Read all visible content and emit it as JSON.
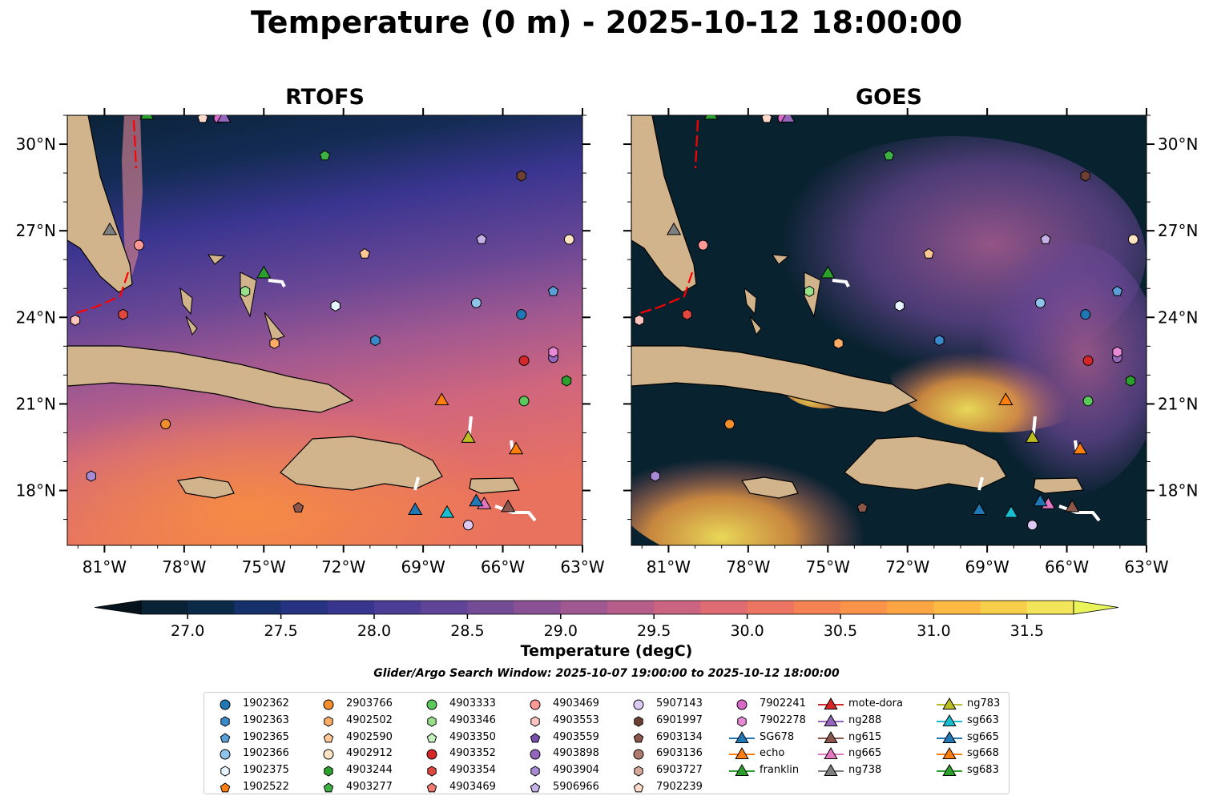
{
  "title": "Temperature (0 m) - 2025-10-12 18:00:00",
  "panels": [
    {
      "title": "RTOFS"
    },
    {
      "title": "GOES"
    }
  ],
  "chart_data": {
    "type": "heatmap",
    "x_ticks": [
      "81°W",
      "78°W",
      "75°W",
      "72°W",
      "69°W",
      "66°W",
      "63°W"
    ],
    "x_tick_values": [
      -81,
      -78,
      -75,
      -72,
      -69,
      -66,
      -63
    ],
    "y_ticks": [
      "30°N",
      "27°N",
      "24°N",
      "21°N",
      "18°N"
    ],
    "y_tick_values": [
      30,
      27,
      24,
      21,
      18
    ],
    "xlim": [
      -82.4,
      -63
    ],
    "ylim": [
      16.1,
      31
    ],
    "colorbar": {
      "label": "Temperature (degC)",
      "ticks": [
        "27.0",
        "27.5",
        "28.0",
        "28.5",
        "29.0",
        "29.5",
        "30.0",
        "30.5",
        "31.0",
        "31.5"
      ],
      "range": [
        26.75,
        31.75
      ],
      "extend": "both",
      "colors": [
        "#0a2236",
        "#0b2a48",
        "#15306a",
        "#263382",
        "#38358f",
        "#4b3c95",
        "#5f4497",
        "#744c96",
        "#8a5294",
        "#a05891",
        "#b65d8a",
        "#cb6480",
        "#de6c72",
        "#ec7462",
        "#f58253",
        "#fa934a",
        "#fca543",
        "#fcb944",
        "#f8cf4b",
        "#f2e55a"
      ]
    },
    "search_window": "Glider/Argo Search Window: 2025-10-07 19:00:00 to 2025-10-12 18:00:00",
    "markers": [
      {
        "name": "1902362",
        "shape": "circle",
        "color": "#1f77b4",
        "lon": -65.3,
        "lat": 24.1
      },
      {
        "name": "1902363",
        "shape": "hexagon",
        "color": "#3a89c9",
        "lon": -70.8,
        "lat": 23.2
      },
      {
        "name": "1902365",
        "shape": "pentagon",
        "color": "#5aa0d6",
        "lon": -64.1,
        "lat": 24.9
      },
      {
        "name": "1902366",
        "shape": "circle",
        "color": "#8fc3ea",
        "lon": -67.0,
        "lat": 24.5
      },
      {
        "name": "1902375",
        "shape": "hexagon",
        "color": "#e8f4fd",
        "lon": -72.3,
        "lat": 24.4
      },
      {
        "name": "1902522",
        "shape": "pentagon",
        "color": "#ff7f0e",
        "lon": null,
        "lat": null
      },
      {
        "name": "2903766",
        "shape": "circle",
        "color": "#f28e2b",
        "lon": -78.7,
        "lat": 20.3
      },
      {
        "name": "4902502",
        "shape": "hexagon",
        "color": "#ffad66",
        "lon": -74.6,
        "lat": 23.1
      },
      {
        "name": "4902590",
        "shape": "pentagon",
        "color": "#ffc896",
        "lon": -71.2,
        "lat": 26.2
      },
      {
        "name": "4902912",
        "shape": "circle",
        "color": "#ffe4c4",
        "lon": -63.5,
        "lat": 26.7
      },
      {
        "name": "4903244",
        "shape": "hexagon",
        "color": "#2ca02c",
        "lon": -63.6,
        "lat": 21.8
      },
      {
        "name": "4903277",
        "shape": "pentagon",
        "color": "#3cb043",
        "lon": -72.7,
        "lat": 29.6
      },
      {
        "name": "4903333",
        "shape": "circle",
        "color": "#5ac85a",
        "lon": -65.2,
        "lat": 21.1
      },
      {
        "name": "4903346",
        "shape": "hexagon",
        "color": "#98df8a",
        "lon": -75.7,
        "lat": 24.9
      },
      {
        "name": "4903350",
        "shape": "pentagon",
        "color": "#c7f0c0",
        "lon": null,
        "lat": null
      },
      {
        "name": "4903352",
        "shape": "circle",
        "color": "#d62728",
        "lon": -65.2,
        "lat": 22.5
      },
      {
        "name": "4903354",
        "shape": "hexagon",
        "color": "#e0483f",
        "lon": -80.3,
        "lat": 24.1
      },
      {
        "name": "4903469",
        "shape": "pentagon",
        "color": "#f07b72",
        "lon": null,
        "lat": null
      },
      {
        "name": "4903469",
        "shape": "circle",
        "color": "#ff9896",
        "lon": -79.7,
        "lat": 26.5
      },
      {
        "name": "4903553",
        "shape": "hexagon",
        "color": "#ffc4c0",
        "lon": -82.1,
        "lat": 23.9
      },
      {
        "name": "4903559",
        "shape": "pentagon",
        "color": "#7a4fb0",
        "lon": null,
        "lat": null
      },
      {
        "name": "4903898",
        "shape": "circle",
        "color": "#9467bd",
        "lon": -64.1,
        "lat": 22.6
      },
      {
        "name": "4903904",
        "shape": "hexagon",
        "color": "#a88ad4",
        "lon": -81.5,
        "lat": 18.5
      },
      {
        "name": "5906966",
        "shape": "pentagon",
        "color": "#c5b0e8",
        "lon": -66.8,
        "lat": 26.7
      },
      {
        "name": "5907143",
        "shape": "circle",
        "color": "#dccaf2",
        "lon": -67.3,
        "lat": 16.8
      },
      {
        "name": "6901997",
        "shape": "hexagon",
        "color": "#6d4033",
        "lon": -65.3,
        "lat": 28.9
      },
      {
        "name": "6903134",
        "shape": "pentagon",
        "color": "#8c564b",
        "lon": -73.7,
        "lat": 17.4
      },
      {
        "name": "6903136",
        "shape": "circle",
        "color": "#b07a6e",
        "lon": null,
        "lat": null
      },
      {
        "name": "6903727",
        "shape": "hexagon",
        "color": "#d6a79b",
        "lon": null,
        "lat": null
      },
      {
        "name": "7902239",
        "shape": "pentagon",
        "color": "#ffd9c9",
        "lon": -77.3,
        "lat": 30.9
      },
      {
        "name": "7902241",
        "shape": "circle",
        "color": "#d868c8",
        "lon": -76.7,
        "lat": 30.9
      },
      {
        "name": "7902278",
        "shape": "hexagon",
        "color": "#e88ad6",
        "lon": -64.1,
        "lat": 22.8
      },
      {
        "name": "SG678",
        "shape": "triangle",
        "color": "#1f77b4",
        "lon": -69.3,
        "lat": 17.3
      },
      {
        "name": "echo",
        "shape": "triangle",
        "color": "#ff7f0e",
        "lon": -68.3,
        "lat": 21.1
      },
      {
        "name": "franklin",
        "shape": "triangle",
        "color": "#2ca02c",
        "lon": -75.0,
        "lat": 25.5
      },
      {
        "name": "mote-dora",
        "shape": "triangle",
        "color": "#d62728",
        "lon": null,
        "lat": null
      },
      {
        "name": "ng288",
        "shape": "triangle",
        "color": "#9467bd",
        "lon": -76.5,
        "lat": 30.9
      },
      {
        "name": "ng615",
        "shape": "triangle",
        "color": "#8c564b",
        "lon": -65.8,
        "lat": 17.4
      },
      {
        "name": "ng665",
        "shape": "triangle",
        "color": "#e377c2",
        "lon": -66.7,
        "lat": 17.5
      },
      {
        "name": "ng738",
        "shape": "triangle",
        "color": "#7f7f7f",
        "lon": -80.8,
        "lat": 27.0
      },
      {
        "name": "ng783",
        "shape": "triangle",
        "color": "#bcbd22",
        "lon": -67.3,
        "lat": 19.8
      },
      {
        "name": "sg663",
        "shape": "triangle",
        "color": "#17becf",
        "lon": -68.1,
        "lat": 17.2
      },
      {
        "name": "sg665",
        "shape": "triangle",
        "color": "#1f77b4",
        "lon": -67.0,
        "lat": 17.6
      },
      {
        "name": "sg668",
        "shape": "triangle",
        "color": "#ff7f0e",
        "lon": -65.5,
        "lat": 19.4
      },
      {
        "name": "sg683",
        "shape": "triangle",
        "color": "#2ca02c",
        "lon": -79.4,
        "lat": 31.0
      }
    ]
  },
  "legend": {
    "columns": [
      [
        {
          "label": "1902362",
          "shape": "circle",
          "color": "#1f77b4"
        },
        {
          "label": "1902363",
          "shape": "hexagon",
          "color": "#3a89c9"
        },
        {
          "label": "1902365",
          "shape": "pentagon",
          "color": "#5aa0d6"
        },
        {
          "label": "1902366",
          "shape": "circle",
          "color": "#8fc3ea"
        },
        {
          "label": "1902375",
          "shape": "hexagon",
          "color": "#e8f4fd"
        },
        {
          "label": "1902522",
          "shape": "pentagon",
          "color": "#ff7f0e"
        }
      ],
      [
        {
          "label": "2903766",
          "shape": "circle",
          "color": "#f28e2b"
        },
        {
          "label": "4902502",
          "shape": "hexagon",
          "color": "#ffad66"
        },
        {
          "label": "4902590",
          "shape": "pentagon",
          "color": "#ffc896"
        },
        {
          "label": "4902912",
          "shape": "circle",
          "color": "#ffe4c4"
        },
        {
          "label": "4903244",
          "shape": "hexagon",
          "color": "#2ca02c"
        },
        {
          "label": "4903277",
          "shape": "pentagon",
          "color": "#3cb043"
        }
      ],
      [
        {
          "label": "4903333",
          "shape": "circle",
          "color": "#5ac85a"
        },
        {
          "label": "4903346",
          "shape": "hexagon",
          "color": "#98df8a"
        },
        {
          "label": "4903350",
          "shape": "pentagon",
          "color": "#c7f0c0"
        },
        {
          "label": "4903352",
          "shape": "circle",
          "color": "#d62728"
        },
        {
          "label": "4903354",
          "shape": "hexagon",
          "color": "#e0483f"
        },
        {
          "label": "4903469",
          "shape": "pentagon",
          "color": "#f07b72"
        }
      ],
      [
        {
          "label": "4903469",
          "shape": "circle",
          "color": "#ff9896"
        },
        {
          "label": "4903553",
          "shape": "hexagon",
          "color": "#ffc4c0"
        },
        {
          "label": "4903559",
          "shape": "pentagon",
          "color": "#7a4fb0"
        },
        {
          "label": "4903898",
          "shape": "circle",
          "color": "#9467bd"
        },
        {
          "label": "4903904",
          "shape": "hexagon",
          "color": "#a88ad4"
        },
        {
          "label": "5906966",
          "shape": "pentagon",
          "color": "#c5b0e8"
        }
      ],
      [
        {
          "label": "5907143",
          "shape": "circle",
          "color": "#dccaf2"
        },
        {
          "label": "6901997",
          "shape": "hexagon",
          "color": "#6d4033"
        },
        {
          "label": "6903134",
          "shape": "pentagon",
          "color": "#8c564b"
        },
        {
          "label": "6903136",
          "shape": "circle",
          "color": "#b07a6e"
        },
        {
          "label": "6903727",
          "shape": "hexagon",
          "color": "#d6a79b"
        },
        {
          "label": "7902239",
          "shape": "pentagon",
          "color": "#ffd9c9"
        }
      ],
      [
        {
          "label": "7902241",
          "shape": "circle",
          "color": "#d868c8"
        },
        {
          "label": "7902278",
          "shape": "hexagon",
          "color": "#e88ad6"
        },
        {
          "label": "SG678",
          "shape": "triangle",
          "color": "#1f77b4"
        },
        {
          "label": "echo",
          "shape": "triangle",
          "color": "#ff7f0e"
        },
        {
          "label": "franklin",
          "shape": "triangle",
          "color": "#2ca02c"
        }
      ],
      [
        {
          "label": "mote-dora",
          "shape": "triangle",
          "color": "#d62728"
        },
        {
          "label": "ng288",
          "shape": "triangle",
          "color": "#9467bd"
        },
        {
          "label": "ng615",
          "shape": "triangle",
          "color": "#8c564b"
        },
        {
          "label": "ng665",
          "shape": "triangle",
          "color": "#e377c2"
        },
        {
          "label": "ng738",
          "shape": "triangle",
          "color": "#7f7f7f"
        }
      ],
      [
        {
          "label": "ng783",
          "shape": "triangle",
          "color": "#bcbd22"
        },
        {
          "label": "sg663",
          "shape": "triangle",
          "color": "#17becf"
        },
        {
          "label": "sg665",
          "shape": "triangle",
          "color": "#1f77b4"
        },
        {
          "label": "sg668",
          "shape": "triangle",
          "color": "#ff7f0e"
        },
        {
          "label": "sg683",
          "shape": "triangle",
          "color": "#2ca02c"
        }
      ]
    ]
  },
  "colors": {
    "land": "#d2b48c",
    "goes_missing": "#08222f",
    "current_track": "#ff0000",
    "glider_track": "#ffffff"
  }
}
